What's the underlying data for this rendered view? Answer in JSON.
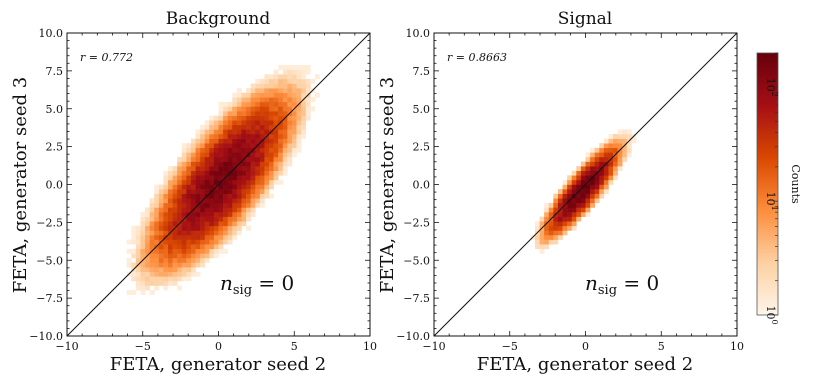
{
  "colors": {
    "colormap": [
      "#fff5eb",
      "#fdd0a2",
      "#fd8d3c",
      "#d94801",
      "#a50f15",
      "#67000d"
    ],
    "diagonal": "#111111",
    "frame": "#111111"
  },
  "colorbar": {
    "label": "Counts",
    "scale": "log",
    "range": [
      1,
      200
    ],
    "ticks": [
      {
        "value": 1,
        "base": "10",
        "exp": "0"
      },
      {
        "value": 10,
        "base": "10",
        "exp": "1"
      },
      {
        "value": 100,
        "base": "10",
        "exp": "2"
      }
    ]
  },
  "chart_data": [
    {
      "type": "heatmap",
      "title": "Background",
      "xlabel": "FETA, generator seed 2",
      "ylabel": "FETA, generator seed 3",
      "xlim": [
        -10,
        10
      ],
      "ylim": [
        -10,
        10
      ],
      "xticks": [
        "−10",
        "−5",
        "0",
        "5",
        "10"
      ],
      "yticks": [
        "10.0",
        "7.5",
        "5.0",
        "2.5",
        "0.0",
        "−2.5",
        "−5.0",
        "−7.5",
        "−10.0"
      ],
      "annotation_r": "r = 0.772",
      "annotation_nsig_main": "n",
      "annotation_nsig_sub": "sig",
      "annotation_nsig_value": " = 0",
      "diagonal_line": "y = x",
      "distribution": {
        "correlation": 0.772,
        "mean_x": 0.2,
        "mean_y": 0.3,
        "sigma_x": 1.9,
        "sigma_y": 2.3,
        "peak_counts": 150
      }
    },
    {
      "type": "heatmap",
      "title": "Signal",
      "xlabel": "FETA, generator seed 2",
      "ylabel": "FETA, generator seed 3",
      "xlim": [
        -10,
        10
      ],
      "ylim": [
        -10,
        10
      ],
      "xticks": [
        "−10",
        "−5",
        "0",
        "5",
        "10"
      ],
      "yticks": [
        "10.0",
        "7.5",
        "5.0",
        "2.5",
        "0.0",
        "−2.5",
        "−5.0",
        "−7.5",
        "−10.0"
      ],
      "annotation_r": "r = 0.8663",
      "annotation_nsig_main": "n",
      "annotation_nsig_sub": "sig",
      "annotation_nsig_value": " = 0",
      "diagonal_line": "y = x",
      "distribution": {
        "correlation": 0.8663,
        "mean_x": -0.2,
        "mean_y": -0.4,
        "sigma_x": 1.0,
        "sigma_y": 1.2,
        "peak_counts": 200
      }
    }
  ]
}
